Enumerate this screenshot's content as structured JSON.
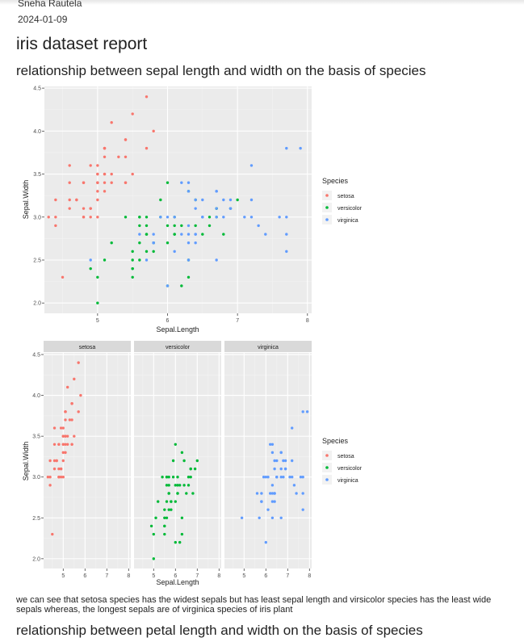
{
  "document": {
    "author": "Sneha Rautela",
    "date": "2024-01-09",
    "title": "iris dataset report",
    "section1_heading": "relationship between sepal length and width on the basis of species",
    "observation": "we can see that setosa species has the widest sepals but has least sepal length and virsicolor species has the least wide sepals whereas, the longest sepals are of virginica species of iris plant",
    "section2_heading": "relationship between petal length and width on the basis of species"
  },
  "colors": {
    "setosa": "#F8766D",
    "versicolor": "#00BA38",
    "virginica": "#619CFF",
    "panel": "#EBEBEB",
    "grid": "#FFFFFF",
    "strip": "#D9D9D9"
  },
  "chart_data": [
    {
      "type": "scatter",
      "title": "",
      "xlabel": "Sepal.Length",
      "ylabel": "Sepal.Width",
      "xlim": [
        4.24,
        8.06
      ],
      "ylim": [
        1.88,
        4.52
      ],
      "xticks": [
        5,
        6,
        7,
        8
      ],
      "yticks": [
        2.0,
        2.5,
        3.0,
        3.5,
        4.0,
        4.5
      ],
      "ytick_labels": [
        "2.0",
        "2.5",
        "3.0",
        "3.5",
        "4.0",
        "4.5"
      ],
      "grid": true,
      "legend": {
        "title": "Species",
        "position": "right",
        "entries": [
          "setosa",
          "versicolor",
          "virginica"
        ]
      },
      "series": [
        {
          "name": "setosa",
          "points": [
            [
              5.1,
              3.5
            ],
            [
              4.9,
              3.0
            ],
            [
              4.7,
              3.2
            ],
            [
              4.6,
              3.1
            ],
            [
              5.0,
              3.6
            ],
            [
              5.4,
              3.9
            ],
            [
              4.6,
              3.4
            ],
            [
              5.0,
              3.4
            ],
            [
              4.4,
              2.9
            ],
            [
              4.9,
              3.1
            ],
            [
              5.4,
              3.7
            ],
            [
              4.8,
              3.4
            ],
            [
              4.8,
              3.0
            ],
            [
              4.3,
              3.0
            ],
            [
              5.8,
              4.0
            ],
            [
              5.7,
              4.4
            ],
            [
              5.4,
              3.9
            ],
            [
              5.1,
              3.5
            ],
            [
              5.7,
              3.8
            ],
            [
              5.1,
              3.8
            ],
            [
              5.4,
              3.4
            ],
            [
              5.1,
              3.7
            ],
            [
              4.6,
              3.6
            ],
            [
              5.1,
              3.3
            ],
            [
              4.8,
              3.4
            ],
            [
              5.0,
              3.0
            ],
            [
              5.0,
              3.4
            ],
            [
              5.2,
              3.5
            ],
            [
              5.2,
              3.4
            ],
            [
              4.7,
              3.2
            ],
            [
              4.8,
              3.1
            ],
            [
              5.4,
              3.4
            ],
            [
              5.2,
              4.1
            ],
            [
              5.5,
              4.2
            ],
            [
              4.9,
              3.1
            ],
            [
              5.0,
              3.2
            ],
            [
              5.5,
              3.5
            ],
            [
              4.9,
              3.6
            ],
            [
              4.4,
              3.0
            ],
            [
              5.1,
              3.4
            ],
            [
              5.0,
              3.5
            ],
            [
              4.5,
              2.3
            ],
            [
              4.4,
              3.2
            ],
            [
              5.0,
              3.5
            ],
            [
              5.1,
              3.8
            ],
            [
              4.8,
              3.0
            ],
            [
              5.1,
              3.8
            ],
            [
              4.6,
              3.2
            ],
            [
              5.3,
              3.7
            ],
            [
              5.0,
              3.3
            ]
          ]
        },
        {
          "name": "versicolor",
          "points": [
            [
              7.0,
              3.2
            ],
            [
              6.4,
              3.2
            ],
            [
              6.9,
              3.1
            ],
            [
              5.5,
              2.3
            ],
            [
              6.5,
              2.8
            ],
            [
              5.7,
              2.8
            ],
            [
              6.3,
              3.3
            ],
            [
              4.9,
              2.4
            ],
            [
              6.6,
              2.9
            ],
            [
              5.2,
              2.7
            ],
            [
              5.0,
              2.0
            ],
            [
              5.9,
              3.0
            ],
            [
              6.0,
              2.2
            ],
            [
              6.1,
              2.9
            ],
            [
              5.6,
              2.9
            ],
            [
              6.7,
              3.1
            ],
            [
              5.6,
              3.0
            ],
            [
              5.8,
              2.7
            ],
            [
              6.2,
              2.2
            ],
            [
              5.6,
              2.5
            ],
            [
              5.9,
              3.2
            ],
            [
              6.1,
              2.8
            ],
            [
              6.3,
              2.5
            ],
            [
              6.1,
              2.8
            ],
            [
              6.4,
              2.9
            ],
            [
              6.6,
              3.0
            ],
            [
              6.8,
              2.8
            ],
            [
              6.7,
              3.0
            ],
            [
              6.0,
              2.9
            ],
            [
              5.7,
              2.6
            ],
            [
              5.5,
              2.4
            ],
            [
              5.5,
              2.4
            ],
            [
              5.8,
              2.7
            ],
            [
              6.0,
              2.7
            ],
            [
              5.4,
              3.0
            ],
            [
              6.0,
              3.4
            ],
            [
              6.7,
              3.1
            ],
            [
              6.3,
              2.3
            ],
            [
              5.6,
              3.0
            ],
            [
              5.5,
              2.5
            ],
            [
              5.5,
              2.6
            ],
            [
              6.1,
              3.0
            ],
            [
              5.8,
              2.6
            ],
            [
              5.0,
              2.3
            ],
            [
              5.6,
              2.7
            ],
            [
              5.7,
              3.0
            ],
            [
              5.7,
              2.9
            ],
            [
              6.2,
              2.9
            ],
            [
              5.1,
              2.5
            ],
            [
              5.7,
              2.8
            ]
          ]
        },
        {
          "name": "virginica",
          "points": [
            [
              6.3,
              3.3
            ],
            [
              5.8,
              2.7
            ],
            [
              7.1,
              3.0
            ],
            [
              6.3,
              2.9
            ],
            [
              6.5,
              3.0
            ],
            [
              7.6,
              3.0
            ],
            [
              4.9,
              2.5
            ],
            [
              7.3,
              2.9
            ],
            [
              6.7,
              2.5
            ],
            [
              7.2,
              3.6
            ],
            [
              6.5,
              3.2
            ],
            [
              6.4,
              2.7
            ],
            [
              6.8,
              3.0
            ],
            [
              5.7,
              2.5
            ],
            [
              5.8,
              2.8
            ],
            [
              6.4,
              3.2
            ],
            [
              6.5,
              3.0
            ],
            [
              7.7,
              3.8
            ],
            [
              7.7,
              2.6
            ],
            [
              6.0,
              2.2
            ],
            [
              6.9,
              3.2
            ],
            [
              5.6,
              2.8
            ],
            [
              7.7,
              2.8
            ],
            [
              6.3,
              2.7
            ],
            [
              6.7,
              3.3
            ],
            [
              7.2,
              3.2
            ],
            [
              6.2,
              2.8
            ],
            [
              6.1,
              3.0
            ],
            [
              6.4,
              2.8
            ],
            [
              7.2,
              3.0
            ],
            [
              7.4,
              2.8
            ],
            [
              7.9,
              3.8
            ],
            [
              6.4,
              2.8
            ],
            [
              6.3,
              2.8
            ],
            [
              6.1,
              2.6
            ],
            [
              7.7,
              3.0
            ],
            [
              6.3,
              3.4
            ],
            [
              6.4,
              3.1
            ],
            [
              6.0,
              3.0
            ],
            [
              6.9,
              3.1
            ],
            [
              6.7,
              3.1
            ],
            [
              6.9,
              3.1
            ],
            [
              5.8,
              2.7
            ],
            [
              6.8,
              3.2
            ],
            [
              6.7,
              3.3
            ],
            [
              6.7,
              3.0
            ],
            [
              6.3,
              2.5
            ],
            [
              6.5,
              3.0
            ],
            [
              6.2,
              3.4
            ],
            [
              5.9,
              3.0
            ]
          ]
        }
      ]
    },
    {
      "type": "scatter",
      "title": "",
      "xlabel": "Sepal.Length",
      "ylabel": "Sepal.Width",
      "facets": [
        "setosa",
        "versicolor",
        "virginica"
      ],
      "xlim": [
        4.1,
        8.1
      ],
      "ylim": [
        1.88,
        4.52
      ],
      "xticks": [
        5,
        6,
        7,
        8
      ],
      "yticks": [
        2.0,
        2.5,
        3.0,
        3.5,
        4.0,
        4.5
      ],
      "ytick_labels": [
        "2.0",
        "2.5",
        "3.0",
        "3.5",
        "4.0",
        "4.5"
      ],
      "grid": true,
      "legend": {
        "title": "Species",
        "position": "right",
        "entries": [
          "setosa",
          "versicolor",
          "virginica"
        ]
      },
      "series_ref": "same observations as chart 1, one facet panel per species"
    }
  ]
}
